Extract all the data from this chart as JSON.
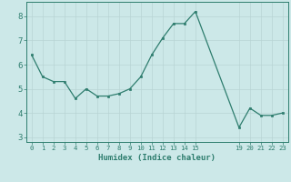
{
  "x": [
    0,
    1,
    2,
    3,
    4,
    5,
    6,
    7,
    8,
    9,
    10,
    11,
    12,
    13,
    14,
    15,
    19,
    20,
    21,
    22,
    23
  ],
  "y": [
    6.4,
    5.5,
    5.3,
    5.3,
    4.6,
    5.0,
    4.7,
    4.7,
    4.8,
    5.0,
    5.5,
    6.4,
    7.1,
    7.7,
    7.7,
    8.2,
    3.4,
    4.2,
    3.9,
    3.9,
    4.0
  ],
  "xlabel": "Humidex (Indice chaleur)",
  "xticks": [
    0,
    1,
    2,
    3,
    4,
    5,
    6,
    7,
    8,
    9,
    10,
    11,
    12,
    13,
    14,
    15,
    19,
    20,
    21,
    22,
    23
  ],
  "xtick_labels": [
    "0",
    "1",
    "2",
    "3",
    "4",
    "5",
    "6",
    "7",
    "8",
    "9",
    "10",
    "11",
    "12",
    "13",
    "14",
    "15",
    "19",
    "20",
    "21",
    "22",
    "23"
  ],
  "yticks": [
    3,
    4,
    5,
    6,
    7,
    8
  ],
  "ylim": [
    2.8,
    8.6
  ],
  "xlim": [
    -0.5,
    23.5
  ],
  "line_color": "#2e7d6e",
  "marker_color": "#2e7d6e",
  "bg_color": "#cce8e8",
  "grid_color": "#b8d4d4",
  "axis_color": "#2e7d6e",
  "label_color": "#2e7d6e",
  "xlabel_fontsize": 6.5,
  "xtick_fontsize": 5.2,
  "ytick_fontsize": 6.5
}
